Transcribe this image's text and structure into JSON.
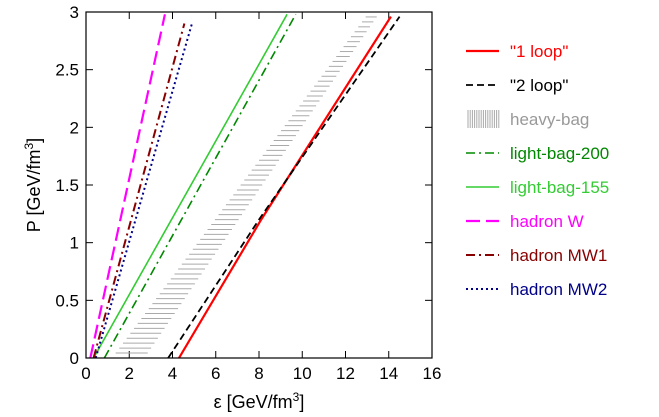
{
  "chart_data": {
    "type": "line",
    "title": "",
    "xlabel": "ε [GeV/fm",
    "xlabel_sup": "3",
    "xlabel_tail": "]",
    "ylabel": "P [GeV/fm",
    "ylabel_sup": "3",
    "ylabel_tail": "]",
    "xlim": [
      0,
      16
    ],
    "ylim": [
      0,
      3
    ],
    "xticks": [
      0,
      2,
      4,
      6,
      8,
      10,
      12,
      14,
      16
    ],
    "yticks": [
      0,
      0.5,
      1,
      1.5,
      2,
      2.5,
      3
    ],
    "xtick_labels": [
      "0",
      "2",
      "4",
      "6",
      "8",
      "10",
      "12",
      "14",
      "16"
    ],
    "ytick_labels": [
      "0",
      "0.5",
      "1",
      "1.5",
      "2",
      "2.5",
      "3"
    ],
    "grid": false,
    "legend_position": "right, outside",
    "series": [
      {
        "name": "\"1 loop\"",
        "color": "#ff0000",
        "dash": "solid",
        "width": 2.2,
        "x": [
          4.3,
          8.1,
          14.1
        ],
        "y": [
          0,
          1.2,
          2.96
        ]
      },
      {
        "name": "\"2 loop\"",
        "color": "#000000",
        "dash": "dashed",
        "width": 1.8,
        "x": [
          3.8,
          8.0,
          14.5
        ],
        "y": [
          0,
          1.2,
          2.96
        ]
      },
      {
        "name": "heavy-bag",
        "color": "#aaaaaa",
        "dash": "band",
        "width": 1,
        "x": [
          1.2,
          13.1
        ],
        "y": [
          0,
          3.0
        ],
        "x_upper": [
          2.7,
          13.6
        ]
      },
      {
        "name": "light-bag-200",
        "color": "#008800",
        "dash": "dashdot",
        "width": 1.6,
        "x": [
          0.85,
          9.7
        ],
        "y": [
          0,
          2.98
        ]
      },
      {
        "name": "light-bag-155",
        "color": "#33cc33",
        "dash": "solid",
        "width": 1.6,
        "x": [
          0.35,
          9.3
        ],
        "y": [
          0,
          2.98
        ]
      },
      {
        "name": "hadron W",
        "color": "#ff00ff",
        "dash": "longdash",
        "width": 2.2,
        "x": [
          0.2,
          3.65
        ],
        "y": [
          0,
          2.98
        ]
      },
      {
        "name": "hadron MW1",
        "color": "#880000",
        "dash": "dashdot",
        "width": 2,
        "x": [
          0.35,
          4.55
        ],
        "y": [
          0,
          2.9
        ]
      },
      {
        "name": "hadron MW2",
        "color": "#000088",
        "dash": "dotted",
        "width": 2,
        "x": [
          0.45,
          4.9
        ],
        "y": [
          0,
          2.9
        ]
      }
    ]
  },
  "legend_label_colors": [
    "#ff0000",
    "#000000",
    "#999999",
    "#008800",
    "#33cc33",
    "#ff00ff",
    "#880000",
    "#000088"
  ]
}
